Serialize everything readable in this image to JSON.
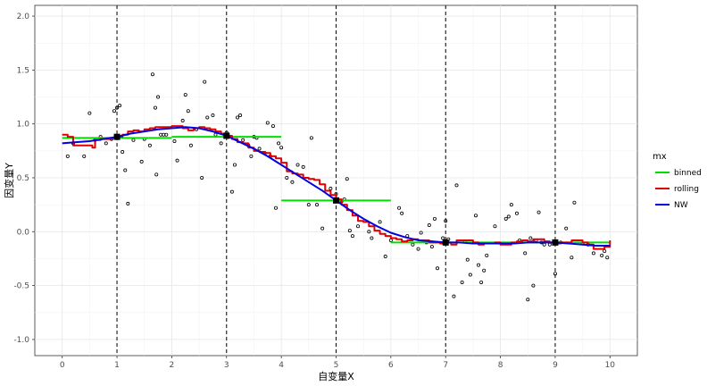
{
  "chart_data": {
    "type": "scatter",
    "xlabel": "自变量X",
    "ylabel": "因变量Y",
    "xlim": [
      -0.5,
      10.5
    ],
    "ylim": [
      -1.15,
      2.1
    ],
    "xticks": [
      "0",
      "1",
      "2",
      "3",
      "4",
      "5",
      "6",
      "7",
      "8",
      "9",
      "10"
    ],
    "yticks": [
      "-1.0",
      "-0.5",
      "0.0",
      "0.5",
      "1.0",
      "1.5",
      "2.0"
    ],
    "grid": true,
    "legend_position": "right",
    "vlines": [
      1,
      3,
      5,
      7,
      9
    ],
    "markers": [
      {
        "x": 1,
        "y": 0.88
      },
      {
        "x": 3,
        "y": 0.89
      },
      {
        "x": 5,
        "y": 0.29
      },
      {
        "x": 7,
        "y": -0.1
      },
      {
        "x": 9,
        "y": -0.1
      }
    ],
    "points": [
      [
        0.1,
        0.7
      ],
      [
        0.2,
        0.82
      ],
      [
        0.4,
        0.7
      ],
      [
        0.5,
        1.1
      ],
      [
        0.6,
        0.85
      ],
      [
        0.8,
        0.82
      ],
      [
        0.9,
        0.86
      ],
      [
        0.95,
        1.12
      ],
      [
        1.0,
        1.15
      ],
      [
        1.05,
        1.17
      ],
      [
        1.1,
        0.74
      ],
      [
        1.15,
        0.57
      ],
      [
        1.2,
        0.26
      ],
      [
        1.3,
        0.85
      ],
      [
        1.45,
        0.65
      ],
      [
        1.6,
        0.8
      ],
      [
        1.65,
        1.46
      ],
      [
        1.7,
        1.15
      ],
      [
        1.72,
        0.53
      ],
      [
        1.75,
        1.25
      ],
      [
        1.8,
        0.9
      ],
      [
        1.85,
        0.9
      ],
      [
        1.9,
        0.9
      ],
      [
        2.05,
        0.84
      ],
      [
        2.1,
        0.66
      ],
      [
        2.2,
        1.03
      ],
      [
        2.25,
        1.27
      ],
      [
        2.3,
        1.12
      ],
      [
        2.35,
        0.8
      ],
      [
        2.55,
        0.5
      ],
      [
        2.6,
        1.39
      ],
      [
        2.65,
        1.06
      ],
      [
        2.75,
        1.08
      ],
      [
        2.8,
        0.9
      ],
      [
        2.9,
        0.82
      ],
      [
        3.0,
        0.92
      ],
      [
        3.1,
        0.37
      ],
      [
        3.15,
        0.62
      ],
      [
        3.2,
        1.06
      ],
      [
        3.25,
        1.08
      ],
      [
        3.3,
        0.85
      ],
      [
        3.4,
        0.8
      ],
      [
        3.45,
        0.7
      ],
      [
        3.5,
        0.88
      ],
      [
        3.6,
        0.77
      ],
      [
        3.7,
        0.73
      ],
      [
        3.75,
        1.01
      ],
      [
        3.8,
        0.7
      ],
      [
        3.85,
        0.98
      ],
      [
        3.9,
        0.22
      ],
      [
        3.95,
        0.82
      ],
      [
        4.0,
        0.78
      ],
      [
        4.1,
        0.5
      ],
      [
        4.2,
        0.46
      ],
      [
        4.3,
        0.62
      ],
      [
        4.4,
        0.6
      ],
      [
        4.5,
        0.25
      ],
      [
        4.55,
        0.87
      ],
      [
        4.65,
        0.25
      ],
      [
        4.75,
        0.03
      ],
      [
        4.9,
        0.4
      ],
      [
        5.0,
        0.35
      ],
      [
        5.1,
        0.28
      ],
      [
        5.15,
        0.3
      ],
      [
        5.2,
        0.49
      ],
      [
        5.25,
        0.01
      ],
      [
        5.3,
        -0.04
      ],
      [
        5.4,
        0.05
      ],
      [
        5.6,
        0.0
      ],
      [
        5.65,
        -0.06
      ],
      [
        5.8,
        0.09
      ],
      [
        5.9,
        -0.23
      ],
      [
        6.0,
        -0.08
      ],
      [
        6.15,
        0.22
      ],
      [
        6.2,
        0.17
      ],
      [
        6.3,
        -0.04
      ],
      [
        6.5,
        -0.16
      ],
      [
        6.55,
        -0.01
      ],
      [
        6.65,
        -0.1
      ],
      [
        6.7,
        0.06
      ],
      [
        6.75,
        -0.14
      ],
      [
        6.8,
        0.12
      ],
      [
        6.85,
        -0.34
      ],
      [
        6.95,
        -0.06
      ],
      [
        7.0,
        0.1
      ],
      [
        7.05,
        -0.07
      ],
      [
        7.15,
        -0.6
      ],
      [
        7.2,
        0.43
      ],
      [
        7.3,
        -0.47
      ],
      [
        7.35,
        -0.09
      ],
      [
        7.4,
        -0.26
      ],
      [
        7.45,
        -0.4
      ],
      [
        7.55,
        0.15
      ],
      [
        7.6,
        -0.31
      ],
      [
        7.65,
        -0.47
      ],
      [
        7.7,
        -0.36
      ],
      [
        7.75,
        -0.22
      ],
      [
        7.9,
        0.05
      ],
      [
        8.1,
        0.12
      ],
      [
        8.15,
        0.14
      ],
      [
        8.2,
        0.25
      ],
      [
        8.3,
        0.17
      ],
      [
        8.35,
        -0.08
      ],
      [
        8.45,
        -0.2
      ],
      [
        8.5,
        -0.63
      ],
      [
        8.6,
        -0.5
      ],
      [
        8.65,
        -0.08
      ],
      [
        8.7,
        0.18
      ],
      [
        8.75,
        -0.1
      ],
      [
        8.8,
        -0.12
      ],
      [
        8.9,
        -0.12
      ],
      [
        9.0,
        -0.39
      ],
      [
        9.1,
        -0.1
      ],
      [
        9.2,
        0.03
      ],
      [
        9.3,
        -0.24
      ],
      [
        9.35,
        0.27
      ],
      [
        9.6,
        -0.12
      ],
      [
        9.7,
        -0.2
      ],
      [
        9.85,
        -0.22
      ],
      [
        9.9,
        -0.18
      ],
      [
        9.95,
        -0.24
      ],
      [
        0.7,
        0.88
      ],
      [
        1.5,
        0.86
      ],
      [
        2.45,
        0.95
      ],
      [
        3.55,
        0.87
      ],
      [
        6.4,
        -0.12
      ],
      [
        8.55,
        -0.06
      ],
      [
        9.5,
        -0.11
      ]
    ],
    "series": [
      {
        "name": "binned",
        "color": "#00e000",
        "segments": [
          {
            "x": [
              0,
              2
            ],
            "y": [
              0.87,
              0.87
            ]
          },
          {
            "x": [
              2,
              4
            ],
            "y": [
              0.88,
              0.88
            ]
          },
          {
            "x": [
              4,
              6
            ],
            "y": [
              0.29,
              0.29
            ]
          },
          {
            "x": [
              6,
              8
            ],
            "y": [
              -0.1,
              -0.1
            ]
          },
          {
            "x": [
              8,
              10
            ],
            "y": [
              -0.1,
              -0.1
            ]
          }
        ]
      },
      {
        "name": "rolling",
        "color": "#e00000",
        "x": [
          0.0,
          0.1,
          0.2,
          0.3,
          0.4,
          0.5,
          0.55,
          0.6,
          0.7,
          0.8,
          0.9,
          1.0,
          1.1,
          1.2,
          1.3,
          1.4,
          1.5,
          1.6,
          1.7,
          1.8,
          1.9,
          2.0,
          2.1,
          2.2,
          2.3,
          2.4,
          2.5,
          2.6,
          2.7,
          2.8,
          2.9,
          3.0,
          3.1,
          3.2,
          3.3,
          3.4,
          3.5,
          3.6,
          3.7,
          3.8,
          3.9,
          4.0,
          4.1,
          4.2,
          4.3,
          4.4,
          4.5,
          4.6,
          4.7,
          4.8,
          4.9,
          5.0,
          5.1,
          5.2,
          5.3,
          5.4,
          5.5,
          5.6,
          5.7,
          5.8,
          5.9,
          6.0,
          6.1,
          6.2,
          6.3,
          6.4,
          6.5,
          6.6,
          6.7,
          6.8,
          6.9,
          7.0,
          7.1,
          7.2,
          7.3,
          7.4,
          7.5,
          7.6,
          7.7,
          7.8,
          7.9,
          8.0,
          8.1,
          8.2,
          8.3,
          8.4,
          8.5,
          8.6,
          8.7,
          8.8,
          8.9,
          9.0,
          9.1,
          9.2,
          9.3,
          9.4,
          9.5,
          9.6,
          9.7,
          9.8,
          9.9,
          10.0
        ],
        "y": [
          0.9,
          0.88,
          0.8,
          0.8,
          0.8,
          0.8,
          0.78,
          0.85,
          0.86,
          0.86,
          0.87,
          0.88,
          0.9,
          0.93,
          0.94,
          0.93,
          0.95,
          0.96,
          0.97,
          0.97,
          0.97,
          0.98,
          0.98,
          0.96,
          0.94,
          0.96,
          0.97,
          0.96,
          0.95,
          0.93,
          0.91,
          0.89,
          0.86,
          0.83,
          0.82,
          0.78,
          0.75,
          0.74,
          0.73,
          0.7,
          0.68,
          0.64,
          0.56,
          0.54,
          0.53,
          0.5,
          0.49,
          0.48,
          0.44,
          0.38,
          0.34,
          0.3,
          0.25,
          0.2,
          0.15,
          0.1,
          0.09,
          0.05,
          0.01,
          -0.02,
          -0.04,
          -0.06,
          -0.07,
          -0.09,
          -0.08,
          -0.07,
          -0.08,
          -0.08,
          -0.1,
          -0.1,
          -0.11,
          -0.1,
          -0.12,
          -0.08,
          -0.08,
          -0.08,
          -0.1,
          -0.12,
          -0.11,
          -0.11,
          -0.1,
          -0.12,
          -0.12,
          -0.1,
          -0.09,
          -0.08,
          -0.09,
          -0.07,
          -0.07,
          -0.09,
          -0.1,
          -0.11,
          -0.1,
          -0.1,
          -0.08,
          -0.08,
          -0.1,
          -0.12,
          -0.16,
          -0.16,
          -0.14,
          -0.08
        ]
      },
      {
        "name": "NW",
        "color": "#0000e0",
        "x": [
          0.0,
          0.25,
          0.5,
          0.75,
          1.0,
          1.25,
          1.5,
          1.75,
          2.0,
          2.25,
          2.5,
          2.75,
          3.0,
          3.25,
          3.5,
          3.75,
          4.0,
          4.25,
          4.5,
          4.75,
          5.0,
          5.25,
          5.5,
          5.75,
          6.0,
          6.25,
          6.5,
          6.75,
          7.0,
          7.25,
          7.5,
          7.75,
          8.0,
          8.25,
          8.5,
          8.75,
          9.0,
          9.25,
          9.5,
          9.75,
          10.0
        ],
        "y": [
          0.82,
          0.83,
          0.84,
          0.86,
          0.88,
          0.91,
          0.93,
          0.95,
          0.96,
          0.97,
          0.96,
          0.93,
          0.89,
          0.83,
          0.77,
          0.7,
          0.62,
          0.54,
          0.46,
          0.38,
          0.29,
          0.2,
          0.12,
          0.05,
          -0.01,
          -0.05,
          -0.08,
          -0.09,
          -0.1,
          -0.1,
          -0.11,
          -0.11,
          -0.11,
          -0.11,
          -0.1,
          -0.1,
          -0.1,
          -0.11,
          -0.12,
          -0.13,
          -0.13
        ]
      }
    ]
  },
  "legend": {
    "title": "mx",
    "items": [
      {
        "label": "binned",
        "color": "#00e000"
      },
      {
        "label": "rolling",
        "color": "#e00000"
      },
      {
        "label": "NW",
        "color": "#0000e0"
      }
    ]
  }
}
